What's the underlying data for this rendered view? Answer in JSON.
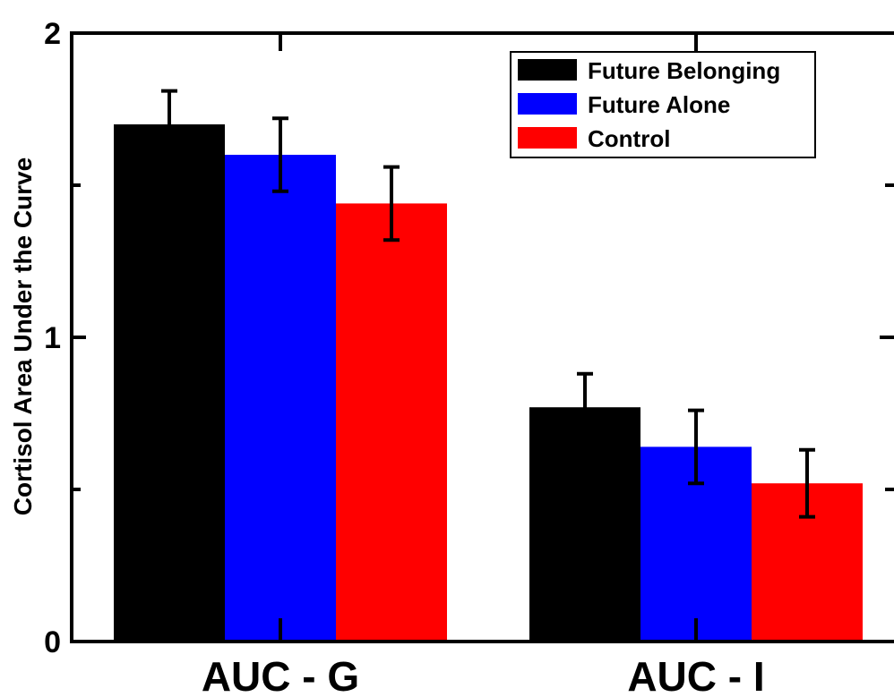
{
  "chart_data": {
    "type": "bar",
    "categories": [
      "AUC - G",
      "AUC - I"
    ],
    "series": [
      {
        "name": "Future Belonging",
        "color": "#000000",
        "values": [
          1.7,
          0.77
        ],
        "errors": [
          0.11,
          0.11
        ]
      },
      {
        "name": "Future Alone",
        "color": "#0000ff",
        "values": [
          1.6,
          0.64
        ],
        "errors": [
          0.12,
          0.12
        ]
      },
      {
        "name": "Control",
        "color": "#ff0000",
        "values": [
          1.44,
          0.52
        ],
        "errors": [
          0.12,
          0.11
        ]
      }
    ],
    "ylabel": "Cortisol Area Under the Curve",
    "ylim": [
      0,
      2
    ],
    "yticks_major": [
      0,
      1,
      2
    ],
    "yticks_minor": [
      0.5,
      1.5
    ],
    "legend_position": "top-right",
    "grid": false
  }
}
